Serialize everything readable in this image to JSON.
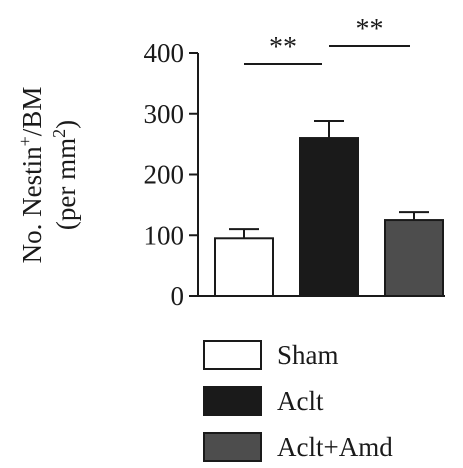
{
  "chart_data": {
    "type": "bar",
    "title": "",
    "ylabel_line1_main": "No. Nestin",
    "ylabel_line1_sup": "+",
    "ylabel_line1_tail": "/BM",
    "ylabel_line2_main": "(per mm",
    "ylabel_line2_sup": "2",
    "ylabel_line2_tail": ")",
    "xlabel": "",
    "ylim": [
      0,
      400
    ],
    "yticks": [
      "0",
      "100",
      "200",
      "300",
      "400"
    ],
    "categories": [
      "Sham",
      "Aclt",
      "Aclt+Amd"
    ],
    "values": [
      95,
      260,
      125
    ],
    "errors": [
      15,
      28,
      13
    ],
    "colors": [
      "#ffffff",
      "#1a1a1a",
      "#4d4d4d"
    ],
    "significance": [
      {
        "from": 0,
        "to": 1,
        "label": "**"
      },
      {
        "from": 1,
        "to": 2,
        "label": "**"
      }
    ],
    "legend_position": "bottom"
  }
}
